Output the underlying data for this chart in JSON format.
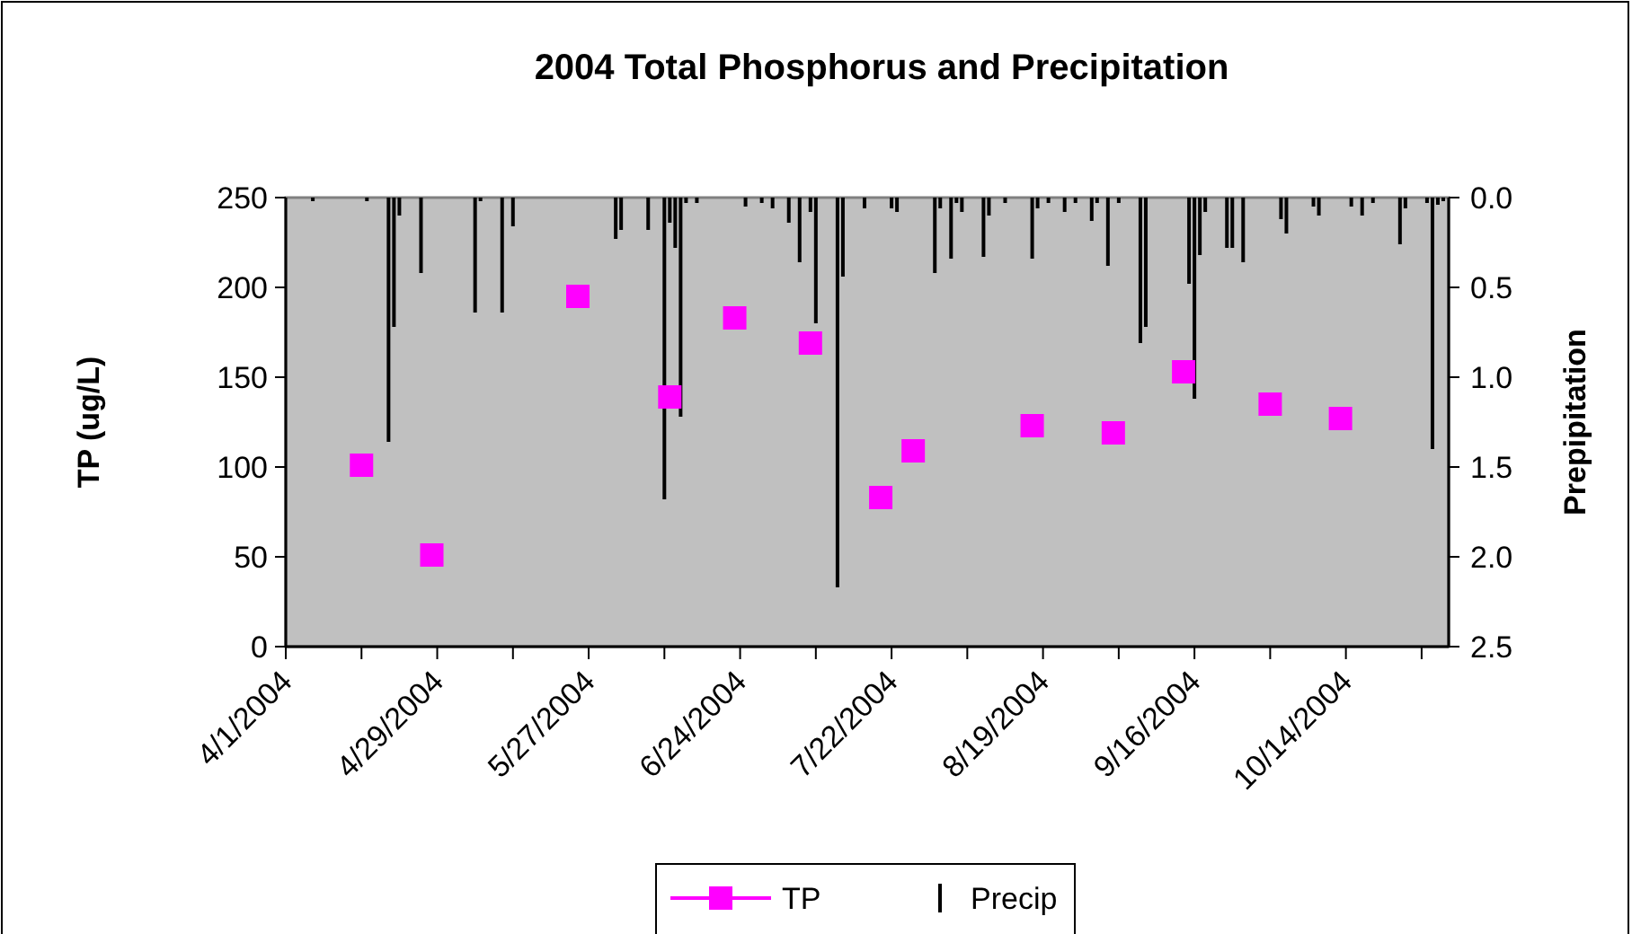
{
  "chart_data": {
    "type": "scatter",
    "title": "2004 Total Phosphorus and Precipitation",
    "ylabel": "TP (ug/L)",
    "y2label": "Prepipitation",
    "xlim": [
      "2004-04-01",
      "2004-11-02"
    ],
    "xticks": [
      {
        "value": "2004-04-01",
        "label": "4/1/2004"
      },
      {
        "value": "2004-04-15",
        "label": null
      },
      {
        "value": "2004-04-29",
        "label": "4/29/2004"
      },
      {
        "value": "2004-05-13",
        "label": null
      },
      {
        "value": "2004-05-27",
        "label": "5/27/2004"
      },
      {
        "value": "2004-06-10",
        "label": null
      },
      {
        "value": "2004-06-24",
        "label": "6/24/2004"
      },
      {
        "value": "2004-07-08",
        "label": null
      },
      {
        "value": "2004-07-22",
        "label": "7/22/2004"
      },
      {
        "value": "2004-08-05",
        "label": null
      },
      {
        "value": "2004-08-19",
        "label": "8/19/2004"
      },
      {
        "value": "2004-09-02",
        "label": null
      },
      {
        "value": "2004-09-16",
        "label": "9/16/2004"
      },
      {
        "value": "2004-09-30",
        "label": null
      },
      {
        "value": "2004-10-14",
        "label": "10/14/2004"
      },
      {
        "value": "2004-10-28",
        "label": null
      }
    ],
    "ylim": [
      0,
      250
    ],
    "yticks": [
      0,
      50,
      100,
      150,
      200,
      250
    ],
    "y2lim": [
      2.5,
      0
    ],
    "y2ticks": [
      {
        "value": 0,
        "label": "0.0"
      },
      {
        "value": 0.5,
        "label": "0.5"
      },
      {
        "value": 1,
        "label": "1.0"
      },
      {
        "value": 1.5,
        "label": "1.5"
      },
      {
        "value": 2,
        "label": "2.0"
      },
      {
        "value": 2.5,
        "label": "2.5"
      }
    ],
    "grid": false,
    "legend": "bottom",
    "series": [
      {
        "name": "TP",
        "marker": "square",
        "color": "#ff00ff",
        "x": [
          "2004-04-15",
          "2004-04-28",
          "2004-05-25",
          "2004-06-11",
          "2004-06-23",
          "2004-07-07",
          "2004-07-20",
          "2004-07-26",
          "2004-08-17",
          "2004-09-01",
          "2004-09-14",
          "2004-09-30",
          "2004-10-13"
        ],
        "values": [
          101,
          51,
          195,
          139,
          183,
          169,
          83,
          109,
          123,
          119,
          153,
          135,
          127
        ]
      },
      {
        "name": "Precip",
        "type": "bar",
        "axis": "y2",
        "color": "#000000",
        "x": [
          "2004-04-06",
          "2004-04-16",
          "2004-04-20",
          "2004-04-21",
          "2004-04-22",
          "2004-04-26",
          "2004-05-06",
          "2004-05-07",
          "2004-05-11",
          "2004-05-13",
          "2004-06-01",
          "2004-06-02",
          "2004-06-07",
          "2004-06-10",
          "2004-06-11",
          "2004-06-12",
          "2004-06-13",
          "2004-06-14",
          "2004-06-16",
          "2004-06-25",
          "2004-06-28",
          "2004-06-30",
          "2004-07-03",
          "2004-07-05",
          "2004-07-07",
          "2004-07-08",
          "2004-07-12",
          "2004-07-13",
          "2004-07-17",
          "2004-07-22",
          "2004-07-23",
          "2004-07-30",
          "2004-07-31",
          "2004-08-02",
          "2004-08-03",
          "2004-08-04",
          "2004-08-08",
          "2004-08-09",
          "2004-08-12",
          "2004-08-17",
          "2004-08-18",
          "2004-08-20",
          "2004-08-23",
          "2004-08-25",
          "2004-08-28",
          "2004-08-29",
          "2004-08-31",
          "2004-09-02",
          "2004-09-06",
          "2004-09-07",
          "2004-09-15",
          "2004-09-16",
          "2004-09-17",
          "2004-09-18",
          "2004-09-22",
          "2004-09-23",
          "2004-09-25",
          "2004-10-02",
          "2004-10-03",
          "2004-10-08",
          "2004-10-09",
          "2004-10-15",
          "2004-10-17",
          "2004-10-19",
          "2004-10-24",
          "2004-10-25",
          "2004-10-29",
          "2004-10-30",
          "2004-10-31",
          "2004-11-01"
        ],
        "values": [
          0.02,
          0.02,
          1.36,
          0.72,
          0.1,
          0.42,
          0.64,
          0.02,
          0.64,
          0.16,
          0.23,
          0.18,
          0.18,
          1.68,
          0.14,
          0.28,
          1.22,
          0.03,
          0.03,
          0.05,
          0.03,
          0.06,
          0.14,
          0.36,
          0.08,
          0.7,
          2.17,
          0.44,
          0.06,
          0.06,
          0.08,
          0.42,
          0.06,
          0.34,
          0.03,
          0.08,
          0.33,
          0.1,
          0.03,
          0.34,
          0.06,
          0.03,
          0.08,
          0.03,
          0.13,
          0.03,
          0.38,
          0.03,
          0.81,
          0.72,
          0.48,
          1.12,
          0.32,
          0.08,
          0.28,
          0.28,
          0.36,
          0.12,
          0.2,
          0.05,
          0.1,
          0.05,
          0.1,
          0.03,
          0.26,
          0.06,
          0.03,
          1.4,
          0.04,
          0.02
        ]
      }
    ]
  }
}
